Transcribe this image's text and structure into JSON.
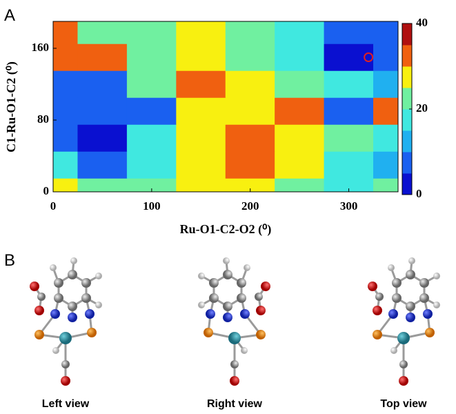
{
  "chart_data": {
    "type": "contour",
    "panel_label": "A",
    "x_label": "Ru-O1-C2-O2 (⁰)",
    "y_label": "C1-Ru-O1-C2 (⁰)",
    "x": [
      0,
      50,
      100,
      150,
      200,
      250,
      300,
      350
    ],
    "y": [
      0,
      30,
      60,
      90,
      120,
      150,
      180
    ],
    "z": [
      [
        25,
        20,
        20,
        25,
        25,
        20,
        15,
        20
      ],
      [
        15,
        5,
        15,
        25,
        33,
        25,
        15,
        10
      ],
      [
        5,
        3,
        15,
        25,
        33,
        25,
        20,
        15
      ],
      [
        5,
        8,
        5,
        25,
        25,
        30,
        5,
        30
      ],
      [
        5,
        5,
        20,
        30,
        25,
        20,
        15,
        10
      ],
      [
        30,
        30,
        22,
        25,
        22,
        15,
        3,
        5
      ],
      [
        30,
        20,
        20,
        25,
        22,
        18,
        5,
        5
      ]
    ],
    "xlim": [
      0,
      350
    ],
    "ylim": [
      0,
      190
    ],
    "xticks": [
      0,
      100,
      200,
      300
    ],
    "yticks": [
      0,
      80,
      160
    ],
    "zlim": [
      0,
      40
    ],
    "zticks": [
      0,
      20,
      40
    ],
    "colors": [
      "#0a10d0",
      "#1a60f0",
      "#20b0f0",
      "#40e8e0",
      "#70f0a0",
      "#f8f010",
      "#f06010",
      "#b01010"
    ],
    "marker": {
      "x": 320,
      "y": 150,
      "color": "#e02020"
    }
  },
  "panel_b": {
    "label": "B",
    "views": [
      "Left view",
      "Right view",
      "Top view"
    ]
  }
}
